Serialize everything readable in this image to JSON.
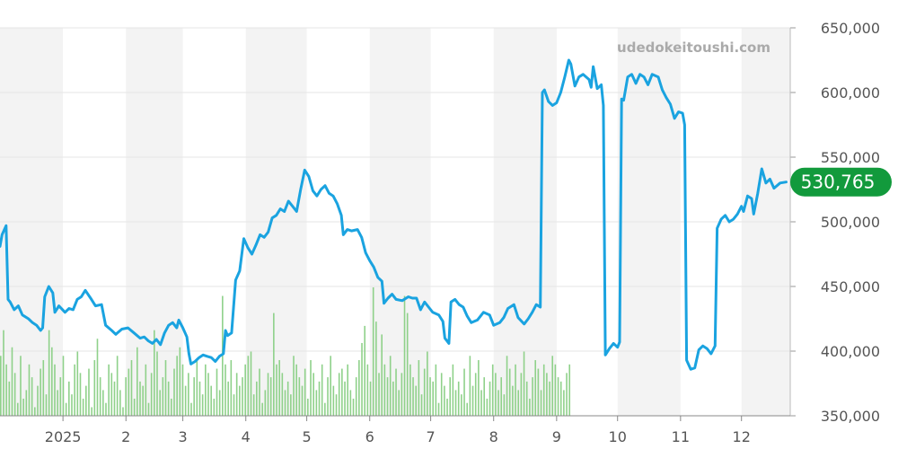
{
  "watermark": "udedokeitoushi.com",
  "chart_data": {
    "type": "line",
    "title": "",
    "xlabel": "",
    "ylabel": "",
    "y_ticks": [
      350000,
      400000,
      450000,
      500000,
      550000,
      600000,
      650000
    ],
    "y_tick_labels": [
      "350,000",
      "400,000",
      "450,000",
      "500,000",
      "550,000",
      "600,000",
      "650,000"
    ],
    "ylim": [
      350000,
      650000
    ],
    "x_range": [
      "2024-12-01",
      "2025-12-25"
    ],
    "x_ticks": [
      {
        "date": "2025-01-01",
        "label": "2025"
      },
      {
        "date": "2025-02-01",
        "label": "2"
      },
      {
        "date": "2025-03-01",
        "label": "3"
      },
      {
        "date": "2025-04-01",
        "label": "4"
      },
      {
        "date": "2025-05-01",
        "label": "5"
      },
      {
        "date": "2025-06-01",
        "label": "6"
      },
      {
        "date": "2025-07-01",
        "label": "7"
      },
      {
        "date": "2025-08-01",
        "label": "8"
      },
      {
        "date": "2025-09-01",
        "label": "9"
      },
      {
        "date": "2025-10-01",
        "label": "10"
      },
      {
        "date": "2025-11-01",
        "label": "11"
      },
      {
        "date": "2025-12-01",
        "label": "12"
      }
    ],
    "grid": true,
    "alternating_month_bands": true,
    "last_value": 530765,
    "last_value_label": "530,765",
    "colors": {
      "line": "#1aa3e0",
      "volume": "#8fd18a",
      "band": "#f3f3f3",
      "grid": "#e6e6e6",
      "badge": "#129a3c"
    },
    "series": [
      {
        "type": "line",
        "points": [
          [
            "2024-12-01",
            481000
          ],
          [
            "2024-12-02",
            490000
          ],
          [
            "2024-12-04",
            497000
          ],
          [
            "2024-12-05",
            440000
          ],
          [
            "2024-12-06",
            438000
          ],
          [
            "2024-12-08",
            432000
          ],
          [
            "2024-12-10",
            435000
          ],
          [
            "2024-12-12",
            428000
          ],
          [
            "2024-12-15",
            425000
          ],
          [
            "2024-12-17",
            422000
          ],
          [
            "2024-12-19",
            420000
          ],
          [
            "2024-12-21",
            416000
          ],
          [
            "2024-12-22",
            418000
          ],
          [
            "2024-12-23",
            442000
          ],
          [
            "2024-12-25",
            450000
          ],
          [
            "2024-12-27",
            445000
          ],
          [
            "2024-12-28",
            430000
          ],
          [
            "2024-12-30",
            435000
          ],
          [
            "2025-01-02",
            430000
          ],
          [
            "2025-01-04",
            433000
          ],
          [
            "2025-01-06",
            432000
          ],
          [
            "2025-01-08",
            440000
          ],
          [
            "2025-01-10",
            442000
          ],
          [
            "2025-01-12",
            447000
          ],
          [
            "2025-01-15",
            440000
          ],
          [
            "2025-01-17",
            435000
          ],
          [
            "2025-01-20",
            436000
          ],
          [
            "2025-01-22",
            420000
          ],
          [
            "2025-01-25",
            416000
          ],
          [
            "2025-01-27",
            413000
          ],
          [
            "2025-01-30",
            417000
          ],
          [
            "2025-02-02",
            418000
          ],
          [
            "2025-02-05",
            414000
          ],
          [
            "2025-02-08",
            410000
          ],
          [
            "2025-02-10",
            411000
          ],
          [
            "2025-02-12",
            408000
          ],
          [
            "2025-02-14",
            406000
          ],
          [
            "2025-02-16",
            409000
          ],
          [
            "2025-02-18",
            405000
          ],
          [
            "2025-02-20",
            414000
          ],
          [
            "2025-02-22",
            420000
          ],
          [
            "2025-02-24",
            422000
          ],
          [
            "2025-02-26",
            418000
          ],
          [
            "2025-02-27",
            424000
          ],
          [
            "2025-03-01",
            418000
          ],
          [
            "2025-03-03",
            411000
          ],
          [
            "2025-03-04",
            398000
          ],
          [
            "2025-03-05",
            390000
          ],
          [
            "2025-03-07",
            392000
          ],
          [
            "2025-03-09",
            395000
          ],
          [
            "2025-03-11",
            397000
          ],
          [
            "2025-03-13",
            396000
          ],
          [
            "2025-03-15",
            395000
          ],
          [
            "2025-03-17",
            392000
          ],
          [
            "2025-03-19",
            396000
          ],
          [
            "2025-03-21",
            398000
          ],
          [
            "2025-03-22",
            416000
          ],
          [
            "2025-03-23",
            412000
          ],
          [
            "2025-03-25",
            414000
          ],
          [
            "2025-03-27",
            455000
          ],
          [
            "2025-03-29",
            462000
          ],
          [
            "2025-03-31",
            487000
          ],
          [
            "2025-04-02",
            480000
          ],
          [
            "2025-04-04",
            475000
          ],
          [
            "2025-04-06",
            482000
          ],
          [
            "2025-04-08",
            490000
          ],
          [
            "2025-04-10",
            488000
          ],
          [
            "2025-04-12",
            492000
          ],
          [
            "2025-04-14",
            503000
          ],
          [
            "2025-04-16",
            505000
          ],
          [
            "2025-04-18",
            510000
          ],
          [
            "2025-04-20",
            508000
          ],
          [
            "2025-04-22",
            516000
          ],
          [
            "2025-04-24",
            512000
          ],
          [
            "2025-04-26",
            508000
          ],
          [
            "2025-04-28",
            525000
          ],
          [
            "2025-04-30",
            540000
          ],
          [
            "2025-05-02",
            535000
          ],
          [
            "2025-05-04",
            524000
          ],
          [
            "2025-05-06",
            520000
          ],
          [
            "2025-05-08",
            525000
          ],
          [
            "2025-05-10",
            528000
          ],
          [
            "2025-05-12",
            522000
          ],
          [
            "2025-05-14",
            520000
          ],
          [
            "2025-05-16",
            514000
          ],
          [
            "2025-05-18",
            505000
          ],
          [
            "2025-05-19",
            490000
          ],
          [
            "2025-05-21",
            494000
          ],
          [
            "2025-05-23",
            493000
          ],
          [
            "2025-05-26",
            494000
          ],
          [
            "2025-05-28",
            488000
          ],
          [
            "2025-05-30",
            476000
          ],
          [
            "2025-06-01",
            470000
          ],
          [
            "2025-06-03",
            465000
          ],
          [
            "2025-06-05",
            457000
          ],
          [
            "2025-06-07",
            454000
          ],
          [
            "2025-06-08",
            437000
          ],
          [
            "2025-06-10",
            441000
          ],
          [
            "2025-06-12",
            444000
          ],
          [
            "2025-06-14",
            440000
          ],
          [
            "2025-06-17",
            439000
          ],
          [
            "2025-06-20",
            442000
          ],
          [
            "2025-06-22",
            441000
          ],
          [
            "2025-06-24",
            441000
          ],
          [
            "2025-06-26",
            432000
          ],
          [
            "2025-06-28",
            438000
          ],
          [
            "2025-06-30",
            434000
          ],
          [
            "2025-07-02",
            430000
          ],
          [
            "2025-07-05",
            428000
          ],
          [
            "2025-07-07",
            423000
          ],
          [
            "2025-07-08",
            410000
          ],
          [
            "2025-07-10",
            406000
          ],
          [
            "2025-07-11",
            438000
          ],
          [
            "2025-07-13",
            440000
          ],
          [
            "2025-07-15",
            436000
          ],
          [
            "2025-07-17",
            434000
          ],
          [
            "2025-07-19",
            427000
          ],
          [
            "2025-07-21",
            422000
          ],
          [
            "2025-07-24",
            424000
          ],
          [
            "2025-07-27",
            430000
          ],
          [
            "2025-07-30",
            428000
          ],
          [
            "2025-08-01",
            420000
          ],
          [
            "2025-08-04",
            422000
          ],
          [
            "2025-08-06",
            426000
          ],
          [
            "2025-08-08",
            433000
          ],
          [
            "2025-08-11",
            436000
          ],
          [
            "2025-08-13",
            426000
          ],
          [
            "2025-08-16",
            421000
          ],
          [
            "2025-08-18",
            425000
          ],
          [
            "2025-08-20",
            430000
          ],
          [
            "2025-08-22",
            436000
          ],
          [
            "2025-08-24",
            434000
          ],
          [
            "2025-08-25",
            600000
          ],
          [
            "2025-08-26",
            602000
          ],
          [
            "2025-08-28",
            593000
          ],
          [
            "2025-08-30",
            590000
          ],
          [
            "2025-09-01",
            592000
          ],
          [
            "2025-09-03",
            600000
          ],
          [
            "2025-09-05",
            612000
          ],
          [
            "2025-09-07",
            625000
          ],
          [
            "2025-09-08",
            622000
          ],
          [
            "2025-09-10",
            605000
          ],
          [
            "2025-09-12",
            612000
          ],
          [
            "2025-09-14",
            614000
          ],
          [
            "2025-09-17",
            610000
          ],
          [
            "2025-09-18",
            604000
          ],
          [
            "2025-09-19",
            620000
          ],
          [
            "2025-09-21",
            603000
          ],
          [
            "2025-09-23",
            606000
          ],
          [
            "2025-09-24",
            590000
          ],
          [
            "2025-09-25",
            397000
          ],
          [
            "2025-09-27",
            402000
          ],
          [
            "2025-09-29",
            406000
          ],
          [
            "2025-10-01",
            403000
          ],
          [
            "2025-10-02",
            407000
          ],
          [
            "2025-10-03",
            595000
          ],
          [
            "2025-10-04",
            594000
          ],
          [
            "2025-10-06",
            612000
          ],
          [
            "2025-10-08",
            614000
          ],
          [
            "2025-10-10",
            607000
          ],
          [
            "2025-10-12",
            614000
          ],
          [
            "2025-10-14",
            612000
          ],
          [
            "2025-10-16",
            606000
          ],
          [
            "2025-10-18",
            614000
          ],
          [
            "2025-10-21",
            612000
          ],
          [
            "2025-10-23",
            602000
          ],
          [
            "2025-10-25",
            596000
          ],
          [
            "2025-10-27",
            591000
          ],
          [
            "2025-10-29",
            580000
          ],
          [
            "2025-10-31",
            585000
          ],
          [
            "2025-11-02",
            584000
          ],
          [
            "2025-11-03",
            575000
          ],
          [
            "2025-11-04",
            393000
          ],
          [
            "2025-11-06",
            386000
          ],
          [
            "2025-11-08",
            387000
          ],
          [
            "2025-11-10",
            401000
          ],
          [
            "2025-11-12",
            404000
          ],
          [
            "2025-11-14",
            402000
          ],
          [
            "2025-11-16",
            398000
          ],
          [
            "2025-11-18",
            404000
          ],
          [
            "2025-11-19",
            495000
          ],
          [
            "2025-11-21",
            502000
          ],
          [
            "2025-11-23",
            505000
          ],
          [
            "2025-11-25",
            500000
          ],
          [
            "2025-11-27",
            502000
          ],
          [
            "2025-11-29",
            506000
          ],
          [
            "2025-12-01",
            512000
          ],
          [
            "2025-12-02",
            508000
          ],
          [
            "2025-12-04",
            520000
          ],
          [
            "2025-12-06",
            518000
          ],
          [
            "2025-12-07",
            506000
          ],
          [
            "2025-12-09",
            522000
          ],
          [
            "2025-12-11",
            541000
          ],
          [
            "2025-12-13",
            530000
          ],
          [
            "2025-12-15",
            533000
          ],
          [
            "2025-12-17",
            526000
          ],
          [
            "2025-12-20",
            530000
          ],
          [
            "2025-12-23",
            530765
          ]
        ]
      },
      {
        "type": "volume_bars",
        "dates_start": "2024-12-01",
        "step_days": 1.4,
        "heights": [
          14,
          20,
          12,
          8,
          16,
          10,
          3,
          14,
          4,
          6,
          12,
          9,
          2,
          7,
          11,
          13,
          5,
          20,
          16,
          12,
          6,
          9,
          14,
          3,
          8,
          5,
          12,
          15,
          10,
          4,
          7,
          11,
          2,
          13,
          18,
          9,
          6,
          3,
          12,
          10,
          8,
          14,
          6,
          2,
          9,
          11,
          13,
          4,
          16,
          8,
          7,
          12,
          3,
          10,
          20,
          15,
          6,
          9,
          13,
          8,
          4,
          11,
          14,
          16,
          12,
          7,
          10,
          3,
          9,
          13,
          8,
          5,
          12,
          10,
          7,
          4,
          11,
          6,
          28,
          12,
          8,
          13,
          5,
          10,
          7,
          9,
          12,
          14,
          15,
          5,
          8,
          11,
          3,
          6,
          10,
          9,
          24,
          12,
          13,
          10,
          6,
          8,
          5,
          14,
          12,
          9,
          7,
          11,
          4,
          13,
          10,
          6,
          8,
          12,
          3,
          9,
          14,
          7,
          5,
          10,
          11,
          8,
          12,
          6,
          4,
          9,
          13,
          17,
          21,
          12,
          8,
          30,
          22,
          10,
          19,
          12,
          9,
          14,
          8,
          11,
          6,
          10,
          28,
          24,
          12,
          9,
          7,
          13,
          5,
          11,
          15,
          9,
          8,
          12,
          3,
          10,
          7,
          4,
          9,
          12,
          6,
          8,
          5,
          11,
          3,
          14,
          7,
          10,
          13,
          6,
          9,
          4,
          8,
          12,
          10,
          6,
          9,
          5,
          14,
          11,
          7,
          12,
          6,
          10,
          15,
          8,
          4,
          9,
          13,
          11,
          6,
          12,
          10,
          8,
          14,
          12,
          9,
          8,
          6,
          10,
          12
        ]
      }
    ]
  }
}
